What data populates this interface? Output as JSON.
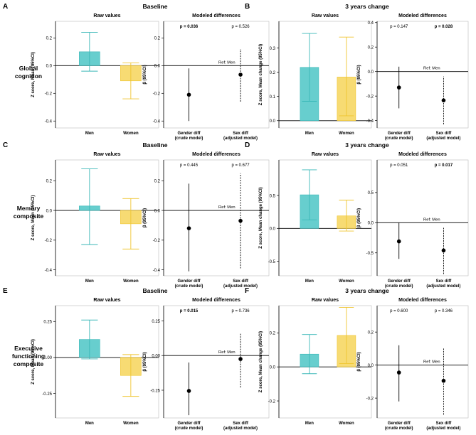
{
  "row_labels": [
    "Global cognition",
    "Memory composite",
    "Executive functioning composite"
  ],
  "section_titles": [
    "Baseline",
    "3 years change"
  ],
  "colors": {
    "men": "#4cc5c5",
    "women": "#f6d55a",
    "men_line": "#3bb8b8",
    "women_line": "#efc530",
    "axis": "#000000",
    "ref": "#999999"
  },
  "chart_data": [
    {
      "panel": "A",
      "row": "Global cognition",
      "section": "Baseline",
      "raw": {
        "type": "bar",
        "title": "Raw values",
        "ylabel": "Z score, Mean (95%CI)",
        "categories": [
          "Men",
          "Women"
        ],
        "values": [
          0.1,
          -0.11
        ],
        "ci_low": [
          -0.04,
          -0.24
        ],
        "ci_high": [
          0.24,
          0.02
        ],
        "ylim": [
          -0.45,
          0.32
        ],
        "ticks": [
          -0.4,
          -0.2,
          0.0,
          0.2
        ],
        "tick_labels": [
          "-0.4",
          "-0.2",
          "0.0",
          "0.2"
        ]
      },
      "diff": {
        "type": "scatter",
        "title": "Modeled differences",
        "ylabel": "β (95%CI)",
        "ref_label": "Ref: Men",
        "categories": [
          "Gender diff\n(crude model)",
          "Sex diff\n(adjusted model)"
        ],
        "values": [
          -0.21,
          -0.065
        ],
        "ci_low": [
          -0.4,
          -0.26
        ],
        "ci_high": [
          -0.02,
          0.12
        ],
        "p_labels": [
          "p = 0.036",
          "p = 0.526"
        ],
        "p_bold": [
          true,
          false
        ],
        "ylim": [
          -0.45,
          0.32
        ],
        "ticks": [
          -0.4,
          -0.2,
          0.0,
          0.2
        ],
        "tick_labels": [
          "-0.4",
          "-0.2",
          "0.0",
          "0.2"
        ]
      }
    },
    {
      "panel": "B",
      "row": "Global cognition",
      "section": "3 years change",
      "raw": {
        "type": "bar",
        "title": "Raw values",
        "ylabel": "Z score, Mean change (95%CI)",
        "categories": [
          "Men",
          "Women"
        ],
        "values": [
          0.22,
          0.18
        ],
        "ci_low": [
          0.08,
          0.02
        ],
        "ci_high": [
          0.36,
          0.345
        ],
        "ylim": [
          -0.03,
          0.41
        ],
        "ticks": [
          0.0,
          0.1,
          0.2,
          0.3
        ],
        "tick_labels": [
          "0.0",
          "0.1",
          "0.2",
          "0.3"
        ]
      },
      "diff": {
        "type": "scatter",
        "title": "Modeled differences",
        "ylabel": "β (95%CI)",
        "ref_label": "Ref: Men",
        "categories": [
          "Gender diff\n(crude model)",
          "Sex diff\n(adjusted model)"
        ],
        "values": [
          -0.13,
          -0.235
        ],
        "ci_low": [
          -0.3,
          -0.43
        ],
        "ci_high": [
          0.04,
          -0.04
        ],
        "p_labels": [
          "p = 0.147",
          "p = 0.028"
        ],
        "p_bold": [
          false,
          true
        ],
        "ylim": [
          -0.46,
          0.41
        ],
        "ticks": [
          -0.4,
          -0.2,
          0.0,
          0.2,
          0.4
        ],
        "tick_labels": [
          "-0.4",
          "-0.2",
          "0.0",
          "0.2",
          "0.4"
        ]
      }
    },
    {
      "panel": "C",
      "row": "Memory composite",
      "section": "Baseline",
      "raw": {
        "type": "bar",
        "title": "Raw values",
        "ylabel": "Z score, Mean (95%CI)",
        "categories": [
          "Men",
          "Women"
        ],
        "values": [
          0.03,
          -0.09
        ],
        "ci_low": [
          -0.23,
          -0.26
        ],
        "ci_high": [
          0.28,
          0.08
        ],
        "ylim": [
          -0.44,
          0.34
        ],
        "ticks": [
          -0.4,
          -0.2,
          0.0,
          0.2
        ],
        "tick_labels": [
          "-0.4",
          "-0.2",
          "0.0",
          "0.2"
        ]
      },
      "diff": {
        "type": "scatter",
        "title": "Modeled differences",
        "ylabel": "β (95%CI)",
        "ref_label": "Ref: Men",
        "categories": [
          "Gender diff\n(crude model)",
          "Sex diff\n(adjusted model)"
        ],
        "values": [
          -0.12,
          -0.07
        ],
        "ci_low": [
          -0.41,
          -0.39
        ],
        "ci_high": [
          0.18,
          0.25
        ],
        "p_labels": [
          "p = 0.445",
          "p = 0.677"
        ],
        "p_bold": [
          false,
          false
        ],
        "ylim": [
          -0.44,
          0.34
        ],
        "ticks": [
          -0.4,
          -0.2,
          0.0,
          0.2
        ],
        "tick_labels": [
          "-0.4",
          "-0.2",
          "0.0",
          "0.2"
        ]
      }
    },
    {
      "panel": "D",
      "row": "Memory composite",
      "section": "3 years change",
      "raw": {
        "type": "bar",
        "title": "Raw values",
        "ylabel": "Z score, Mean change (95%CI)",
        "categories": [
          "Men",
          "Women"
        ],
        "values": [
          0.51,
          0.19
        ],
        "ci_low": [
          0.13,
          -0.04
        ],
        "ci_high": [
          0.89,
          0.43
        ],
        "ylim": [
          -0.72,
          1.04
        ],
        "ticks": [
          -0.5,
          0.0,
          0.5
        ],
        "tick_labels": [
          "-0.5",
          "0.0",
          "0.5"
        ]
      },
      "diff": {
        "type": "scatter",
        "title": "Modeled differences",
        "ylabel": "β (95%CI)",
        "ref_label": "Ref: Men",
        "categories": [
          "Gender diff\n(crude model)",
          "Sex diff\n(adjusted model)"
        ],
        "values": [
          -0.31,
          -0.46
        ],
        "ci_low": [
          -0.6,
          -0.85
        ],
        "ci_high": [
          0.0,
          -0.08
        ],
        "p_labels": [
          "p = 0.051",
          "p = 0.017"
        ],
        "p_bold": [
          false,
          true
        ],
        "ylim": [
          -0.88,
          1.04
        ],
        "ticks": [
          -0.5,
          0.0,
          0.5
        ],
        "tick_labels": [
          "-0.5",
          "0.0",
          "0.5"
        ]
      }
    },
    {
      "panel": "E",
      "row": "Executive functioning composite",
      "section": "Baseline",
      "raw": {
        "type": "bar",
        "title": "Raw values",
        "ylabel": "Z score, Mean (95%CI)",
        "categories": [
          "Men",
          "Women"
        ],
        "values": [
          0.125,
          -0.125
        ],
        "ci_low": [
          -0.01,
          -0.27
        ],
        "ci_high": [
          0.26,
          0.02
        ],
        "ylim": [
          -0.42,
          0.36
        ],
        "ticks": [
          -0.25,
          0.0,
          0.25
        ],
        "tick_labels": [
          "-0.25",
          "0.00",
          "0.25"
        ]
      },
      "diff": {
        "type": "scatter",
        "title": "Modeled differences",
        "ylabel": "β (95%CI)",
        "ref_label": "Ref: Men",
        "categories": [
          "Gender diff\n(crude model)",
          "Sex diff\n(adjusted model)"
        ],
        "values": [
          -0.255,
          -0.025
        ],
        "ci_low": [
          -0.43,
          -0.23
        ],
        "ci_high": [
          -0.05,
          0.16
        ],
        "p_labels": [
          "p = 0.015",
          "p = 0.736"
        ],
        "p_bold": [
          true,
          false
        ],
        "ylim": [
          -0.45,
          0.36
        ],
        "ticks": [
          -0.25,
          0.0,
          0.25
        ],
        "tick_labels": [
          "-0.25",
          "0.00",
          "0.25"
        ]
      }
    },
    {
      "panel": "F",
      "row": "Executive functioning composite",
      "section": "3 years change",
      "raw": {
        "type": "bar",
        "title": "Raw values",
        "ylabel": "Z score, Mean change (95%CI)",
        "categories": [
          "Men",
          "Women"
        ],
        "values": [
          0.075,
          0.185
        ],
        "ci_low": [
          -0.04,
          0.02
        ],
        "ci_high": [
          0.19,
          0.35
        ],
        "ylim": [
          -0.3,
          0.36
        ],
        "ticks": [
          -0.2,
          0.0,
          0.2
        ],
        "tick_labels": [
          "-0.2",
          "0.0",
          "0.2"
        ]
      },
      "diff": {
        "type": "scatter",
        "title": "Modeled differences",
        "ylabel": "β (95%CI)",
        "ref_label": "Ref: Men",
        "categories": [
          "Gender diff\n(crude model)",
          "Sex diff\n(adjusted model)"
        ],
        "values": [
          -0.045,
          -0.095
        ],
        "ci_low": [
          -0.22,
          -0.3
        ],
        "ci_high": [
          0.12,
          0.1
        ],
        "p_labels": [
          "p = 0.600",
          "p = 0.346"
        ],
        "p_bold": [
          false,
          false
        ],
        "ylim": [
          -0.32,
          0.36
        ],
        "ticks": [
          -0.2,
          0.0,
          0.2
        ],
        "tick_labels": [
          "-0.2",
          "0.0",
          "0.2"
        ]
      }
    }
  ]
}
